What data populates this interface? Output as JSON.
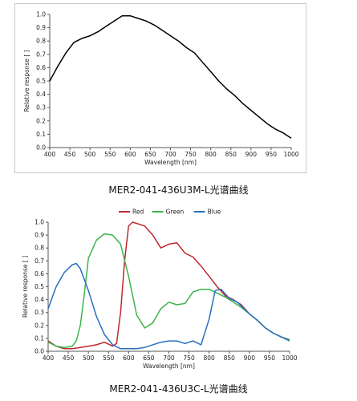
{
  "chart_data": [
    {
      "type": "line",
      "caption": "MER2-041-436U3M-L光谱曲线",
      "xlabel": "Wavelength [nm]",
      "ylabel": "Relative response [ ]",
      "xlim": [
        400,
        1000
      ],
      "ylim": [
        0,
        1.0
      ],
      "xticks": [
        400,
        450,
        500,
        550,
        600,
        650,
        700,
        750,
        800,
        850,
        900,
        950,
        1000
      ],
      "yticks": [
        0,
        0.1,
        0.2,
        0.3,
        0.4,
        0.5,
        0.6,
        0.7,
        0.8,
        0.9,
        1.0
      ],
      "ytick_labels": [
        "0.0",
        "0.1",
        "0.2",
        "0.3",
        "0.4",
        "0.5",
        "0.6",
        "0.7",
        "0.8",
        "0.9",
        "1.0"
      ],
      "grid": false,
      "legend": null,
      "series": [
        {
          "color": "#000000",
          "x": [
            400,
            420,
            440,
            460,
            480,
            500,
            520,
            540,
            560,
            580,
            600,
            620,
            640,
            660,
            680,
            700,
            720,
            740,
            760,
            780,
            800,
            820,
            840,
            860,
            880,
            900,
            920,
            940,
            960,
            980,
            1000
          ],
          "y": [
            0.5,
            0.61,
            0.71,
            0.79,
            0.82,
            0.84,
            0.87,
            0.91,
            0.95,
            0.99,
            0.99,
            0.97,
            0.95,
            0.92,
            0.88,
            0.84,
            0.8,
            0.75,
            0.71,
            0.64,
            0.57,
            0.5,
            0.44,
            0.39,
            0.33,
            0.28,
            0.23,
            0.18,
            0.14,
            0.11,
            0.07
          ]
        }
      ]
    },
    {
      "type": "line",
      "caption": "MER2-041-436U3C-L光谱曲线",
      "xlabel": "Wavelength [nm]",
      "ylabel": "Relative response [ ]",
      "xlim": [
        400,
        1000
      ],
      "ylim": [
        0,
        1.0
      ],
      "xticks": [
        400,
        450,
        500,
        550,
        600,
        650,
        700,
        750,
        800,
        850,
        900,
        950,
        1000
      ],
      "yticks": [
        0,
        0.1,
        0.2,
        0.3,
        0.4,
        0.5,
        0.6,
        0.7,
        0.8,
        0.9,
        1.0
      ],
      "ytick_labels": [
        "0.0",
        "0.1",
        "0.2",
        "0.3",
        "0.4",
        "0.5",
        "0.6",
        "0.7",
        "0.8",
        "0.9",
        "1.0"
      ],
      "grid": false,
      "legend": "top-center",
      "series": [
        {
          "name": "Red",
          "color": "#c0282d",
          "x": [
            400,
            420,
            440,
            460,
            480,
            500,
            520,
            540,
            560,
            570,
            580,
            590,
            600,
            610,
            620,
            640,
            660,
            680,
            700,
            720,
            740,
            760,
            780,
            800,
            820,
            840,
            860,
            880,
            900,
            920,
            940,
            960,
            980,
            1000
          ],
          "y": [
            0.08,
            0.04,
            0.02,
            0.02,
            0.03,
            0.04,
            0.05,
            0.07,
            0.04,
            0.06,
            0.3,
            0.7,
            0.97,
            1.0,
            0.99,
            0.97,
            0.9,
            0.8,
            0.83,
            0.84,
            0.76,
            0.73,
            0.66,
            0.58,
            0.5,
            0.43,
            0.4,
            0.36,
            0.29,
            0.24,
            0.18,
            0.14,
            0.11,
            0.09
          ]
        },
        {
          "name": "Green",
          "color": "#3cb44b",
          "x": [
            400,
            420,
            440,
            460,
            470,
            480,
            490,
            500,
            520,
            540,
            560,
            580,
            600,
            620,
            640,
            660,
            680,
            700,
            720,
            740,
            760,
            780,
            800,
            820,
            840,
            860,
            880,
            900,
            920,
            940,
            960,
            980,
            1000
          ],
          "y": [
            0.07,
            0.04,
            0.03,
            0.04,
            0.08,
            0.2,
            0.45,
            0.72,
            0.86,
            0.91,
            0.9,
            0.83,
            0.58,
            0.28,
            0.18,
            0.22,
            0.33,
            0.38,
            0.36,
            0.37,
            0.46,
            0.48,
            0.48,
            0.45,
            0.42,
            0.38,
            0.34,
            0.29,
            0.24,
            0.18,
            0.14,
            0.11,
            0.09
          ]
        },
        {
          "name": "Blue",
          "color": "#2a6fc0",
          "x": [
            400,
            420,
            440,
            460,
            470,
            480,
            500,
            520,
            540,
            560,
            580,
            600,
            620,
            640,
            660,
            680,
            700,
            720,
            740,
            760,
            780,
            800,
            815,
            830,
            850,
            870,
            900,
            920,
            940,
            960,
            980,
            1000
          ],
          "y": [
            0.33,
            0.5,
            0.61,
            0.67,
            0.68,
            0.64,
            0.47,
            0.27,
            0.13,
            0.05,
            0.02,
            0.02,
            0.02,
            0.03,
            0.05,
            0.07,
            0.08,
            0.08,
            0.06,
            0.08,
            0.05,
            0.25,
            0.47,
            0.48,
            0.41,
            0.38,
            0.29,
            0.24,
            0.18,
            0.14,
            0.11,
            0.08
          ]
        }
      ]
    }
  ]
}
